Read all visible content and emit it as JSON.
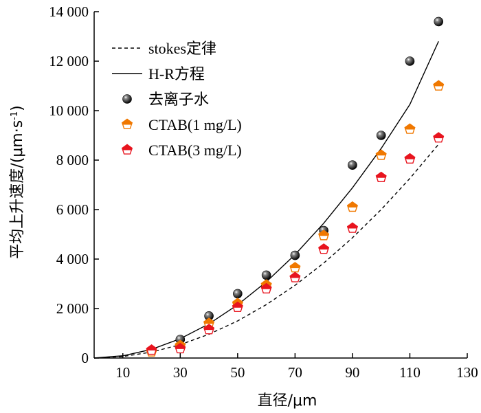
{
  "chart_data": {
    "type": "scatter",
    "xlabel": "直径/μm",
    "ylabel": "平均上升速度/(μm·s",
    "ylabel_sup": "-1",
    "ylabel_close": ")",
    "xlim": [
      0,
      130
    ],
    "ylim": [
      0,
      14000
    ],
    "x_ticks": [
      10,
      30,
      50,
      70,
      90,
      110,
      130
    ],
    "x_tick_labels": [
      "10",
      "30",
      "50",
      "70",
      "90",
      "110",
      "130"
    ],
    "y_ticks": [
      0,
      2000,
      4000,
      6000,
      8000,
      10000,
      12000,
      14000
    ],
    "y_tick_labels": [
      "0",
      "2 000",
      "4 000",
      "6 000",
      "8 000",
      "10 000",
      "12 000",
      "14 000"
    ],
    "legend_position": "top-left",
    "series": [
      {
        "name": "stokes定律",
        "kind": "line-dashed",
        "color": "#000000",
        "x": [
          0,
          10,
          20,
          30,
          40,
          50,
          60,
          70,
          80,
          90,
          100,
          110,
          120
        ],
        "y": [
          0,
          60,
          240,
          540,
          960,
          1500,
          2160,
          2940,
          3840,
          4860,
          6000,
          7260,
          8640
        ]
      },
      {
        "name": "H-R方程",
        "kind": "line-solid",
        "color": "#000000",
        "x": [
          0,
          10,
          20,
          30,
          40,
          50,
          60,
          70,
          80,
          90,
          100,
          110,
          120
        ],
        "y": [
          0,
          90,
          350,
          780,
          1380,
          2150,
          3080,
          4180,
          5450,
          6880,
          8470,
          10250,
          12800
        ]
      },
      {
        "name": "去离子水",
        "kind": "marker-sphere",
        "color": "#000000",
        "x": [
          20,
          30,
          40,
          50,
          60,
          70,
          80,
          90,
          100,
          110,
          120
        ],
        "y": [
          300,
          750,
          1700,
          2600,
          3350,
          4150,
          5150,
          7800,
          9000,
          12000,
          13600
        ]
      },
      {
        "name": "CTAB(1 mg/L)",
        "kind": "marker-pentagon",
        "color": "#f07800",
        "x": [
          20,
          30,
          40,
          50,
          60,
          70,
          80,
          90,
          100,
          110,
          120
        ],
        "y": [
          250,
          500,
          1400,
          2200,
          2950,
          3650,
          4950,
          6100,
          8200,
          9250,
          11000
        ]
      },
      {
        "name": "CTAB(3 mg/L)",
        "kind": "marker-pentagon",
        "color": "#e8141e",
        "x": [
          20,
          30,
          40,
          50,
          60,
          70,
          80,
          90,
          100,
          110,
          120
        ],
        "y": [
          320,
          380,
          1150,
          2050,
          2800,
          3250,
          4400,
          5250,
          7300,
          8050,
          8900
        ]
      }
    ],
    "colors": {
      "axis": "#000000",
      "orange": "#f07800",
      "red": "#e8141e"
    }
  }
}
